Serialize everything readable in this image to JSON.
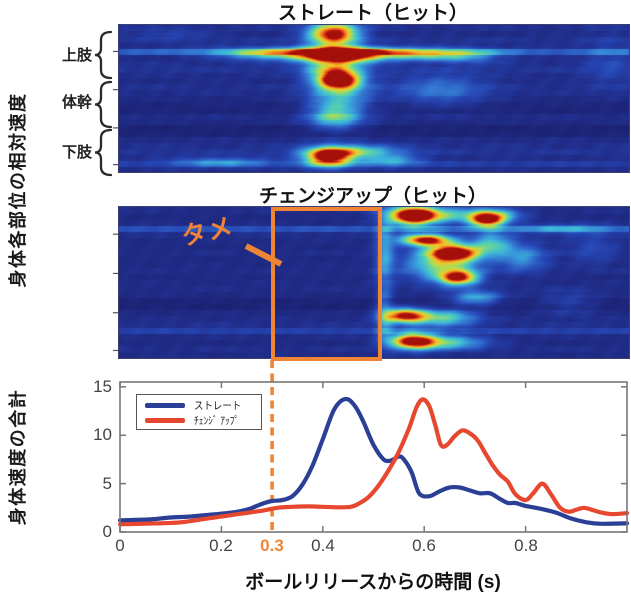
{
  "labels": {
    "ylabel_top": "身体各部位の相対速度",
    "ylabel_bottom": "身体速度の合計",
    "xlabel": "ボールリリースからの時間 (s)",
    "title_straight": "ストレート（ヒット）",
    "title_changeup": "チェンジアップ（ヒット）",
    "body_parts": [
      "上肢",
      "体幹",
      "下肢"
    ],
    "tame": "タメ",
    "highlight_tick": "0.3"
  },
  "legend": {
    "items": [
      {
        "label": "ストレート",
        "color": "#2B3F96"
      },
      {
        "label": "ﾁｪﾝｼﾞ ｱｯﾌﾟ",
        "color": "#E6472E"
      }
    ]
  },
  "axis": {
    "xticks": [
      "0",
      "0.2",
      "0.4",
      "0.6",
      "0.8"
    ],
    "yticks": [
      "0",
      "5",
      "10",
      "15"
    ]
  },
  "colors": {
    "accent_orange": "#EE8434",
    "line_straight": "#2B3F96",
    "line_changeup": "#E6472E",
    "frame": "#777777",
    "brace": "#2a2a2a"
  },
  "chart_data": [
    {
      "type": "heatmap",
      "title": "ストレート（ヒット）",
      "ylabel": "身体各部位の相対速度",
      "colormap": "jet",
      "rows": 25,
      "row_base": [
        0.14,
        0.12,
        0.15,
        0.13,
        0.3,
        0.12,
        0.14,
        0.16,
        0.13,
        0.12,
        0.14,
        0.13,
        0.1,
        0.07,
        0.06,
        0.12,
        0.1,
        0.04,
        0.05,
        0.12,
        0.14,
        0.16,
        0.13,
        0.2,
        0.12
      ],
      "blobs": [
        [
          0.42,
          0.06,
          0.05,
          0.085,
          0.95
        ],
        [
          0.43,
          0.205,
          0.075,
          0.048,
          1.0
        ],
        [
          0.43,
          0.17,
          0.22,
          0.03,
          0.4
        ],
        [
          0.3,
          0.205,
          0.1,
          0.035,
          0.4
        ],
        [
          0.57,
          0.205,
          0.1,
          0.035,
          0.45
        ],
        [
          0.68,
          0.21,
          0.07,
          0.045,
          0.28
        ],
        [
          0.43,
          0.375,
          0.042,
          0.06,
          0.85
        ],
        [
          0.43,
          0.5,
          0.06,
          0.16,
          0.42
        ],
        [
          0.42,
          0.295,
          0.055,
          0.07,
          0.5
        ],
        [
          0.63,
          0.44,
          0.09,
          0.11,
          0.25
        ],
        [
          0.42,
          0.63,
          0.05,
          0.08,
          0.32
        ],
        [
          0.41,
          0.9,
          0.048,
          0.065,
          0.92
        ],
        [
          0.46,
          0.855,
          0.09,
          0.045,
          0.45
        ],
        [
          0.2,
          0.93,
          0.1,
          0.035,
          0.28
        ],
        [
          0.53,
          0.92,
          0.06,
          0.04,
          0.33
        ],
        [
          0.96,
          0.25,
          0.05,
          0.18,
          0.12
        ],
        [
          0.1,
          0.06,
          0.08,
          0.04,
          0.1
        ]
      ]
    },
    {
      "type": "heatmap",
      "title": "チェンジアップ（ヒット）",
      "ylabel": "身体各部位の相対速度",
      "colormap": "jet",
      "rows": 25,
      "annotation": {
        "text": "タメ",
        "box_x_range": [
          0.3,
          0.51
        ]
      },
      "row_base": [
        0.12,
        0.1,
        0.11,
        0.28,
        0.13,
        0.11,
        0.1,
        0.12,
        0.1,
        0.11,
        0.12,
        0.1,
        0.11,
        0.12,
        0.1,
        0.05,
        0.04,
        0.1,
        0.12,
        0.14,
        0.22,
        0.12,
        0.1,
        0.13,
        0.11
      ],
      "blobs": [
        [
          0.575,
          0.055,
          0.045,
          0.065,
          0.95
        ],
        [
          0.63,
          0.05,
          0.09,
          0.055,
          0.45
        ],
        [
          0.72,
          0.085,
          0.034,
          0.05,
          0.75
        ],
        [
          0.6,
          0.215,
          0.05,
          0.04,
          0.9
        ],
        [
          0.655,
          0.3,
          0.048,
          0.055,
          0.95
        ],
        [
          0.63,
          0.38,
          0.075,
          0.11,
          0.5
        ],
        [
          0.665,
          0.465,
          0.038,
          0.05,
          0.8
        ],
        [
          0.79,
          0.33,
          0.05,
          0.095,
          0.33
        ],
        [
          0.87,
          0.14,
          0.09,
          0.035,
          0.22
        ],
        [
          0.56,
          0.715,
          0.04,
          0.05,
          0.85
        ],
        [
          0.635,
          0.73,
          0.065,
          0.055,
          0.5
        ],
        [
          0.575,
          0.885,
          0.045,
          0.055,
          0.9
        ],
        [
          0.645,
          0.895,
          0.075,
          0.045,
          0.48
        ],
        [
          0.52,
          0.3,
          0.018,
          0.22,
          0.33
        ],
        [
          0.52,
          0.72,
          0.018,
          0.18,
          0.28
        ],
        [
          0.74,
          0.055,
          0.05,
          0.045,
          0.4
        ],
        [
          0.73,
          0.24,
          0.04,
          0.075,
          0.42
        ],
        [
          0.88,
          0.63,
          0.06,
          0.08,
          0.15
        ],
        [
          0.93,
          0.27,
          0.05,
          0.11,
          0.15
        ],
        [
          0.7,
          0.6,
          0.05,
          0.05,
          0.4
        ]
      ]
    },
    {
      "type": "line",
      "xlabel": "ボールリリースからの時間 (s)",
      "ylabel": "身体速度の合計",
      "xlim": [
        0,
        1.0
      ],
      "ylim": [
        0,
        15.5
      ],
      "xticks": [
        0,
        0.2,
        0.4,
        0.6,
        0.8
      ],
      "yticks": [
        0,
        5,
        10,
        15
      ],
      "highlight_x": 0.3,
      "legend_position": "upper-left",
      "series": [
        {
          "name": "ストレート",
          "color": "#2B3F96",
          "x": [
            0,
            0.03,
            0.06,
            0.1,
            0.14,
            0.18,
            0.22,
            0.25,
            0.27,
            0.285,
            0.3,
            0.32,
            0.34,
            0.36,
            0.38,
            0.4,
            0.42,
            0.435,
            0.45,
            0.465,
            0.48,
            0.5,
            0.52,
            0.535,
            0.55,
            0.56,
            0.575,
            0.59,
            0.61,
            0.63,
            0.65,
            0.67,
            0.69,
            0.71,
            0.73,
            0.75,
            0.765,
            0.78,
            0.8,
            0.83,
            0.86,
            0.89,
            0.92,
            0.95,
            1.0
          ],
          "y": [
            1.2,
            1.25,
            1.3,
            1.5,
            1.6,
            1.8,
            2.0,
            2.3,
            2.7,
            3.0,
            3.2,
            3.3,
            3.7,
            4.9,
            6.9,
            9.6,
            12.4,
            13.5,
            13.7,
            12.9,
            11.4,
            9.0,
            7.5,
            7.4,
            7.8,
            7.5,
            6.2,
            4.0,
            3.7,
            4.2,
            4.6,
            4.6,
            4.3,
            4.0,
            4.0,
            3.4,
            3.0,
            3.0,
            2.7,
            2.4,
            2.0,
            1.4,
            1.0,
            0.85,
            0.9
          ]
        },
        {
          "name": "チェンジアップ",
          "color": "#E6472E",
          "x": [
            0,
            0.04,
            0.08,
            0.12,
            0.16,
            0.2,
            0.24,
            0.28,
            0.31,
            0.34,
            0.37,
            0.4,
            0.43,
            0.455,
            0.47,
            0.49,
            0.51,
            0.53,
            0.55,
            0.57,
            0.585,
            0.597,
            0.61,
            0.622,
            0.633,
            0.645,
            0.66,
            0.675,
            0.69,
            0.705,
            0.72,
            0.735,
            0.75,
            0.765,
            0.78,
            0.8,
            0.815,
            0.833,
            0.85,
            0.868,
            0.885,
            0.9,
            0.915,
            0.93,
            0.95,
            0.97,
            1.0
          ],
          "y": [
            0.8,
            0.85,
            0.9,
            1.0,
            1.3,
            1.6,
            1.9,
            2.2,
            2.5,
            2.6,
            2.65,
            2.6,
            2.55,
            2.6,
            2.9,
            3.6,
            4.8,
            6.4,
            8.3,
            10.7,
            12.9,
            13.7,
            13.0,
            11.0,
            9.0,
            9.0,
            9.9,
            10.5,
            10.2,
            9.5,
            8.2,
            6.9,
            5.9,
            5.2,
            3.9,
            3.3,
            4.0,
            5.0,
            3.9,
            2.5,
            2.1,
            2.3,
            2.5,
            2.3,
            2.0,
            1.85,
            1.95
          ]
        }
      ]
    }
  ]
}
